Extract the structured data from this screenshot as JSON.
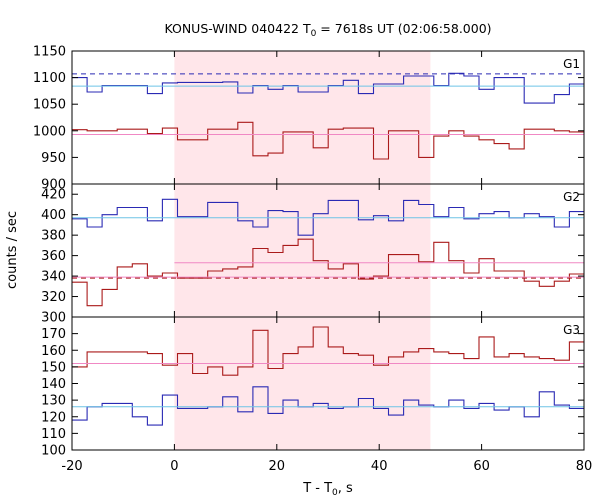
{
  "chart_data": {
    "type": "line",
    "title_parts": [
      "KONUS-WIND 040422 T",
      "0",
      " = 7618s UT (02:06:58.000)"
    ],
    "xlabel_parts": [
      "T - T",
      "0",
      ", s"
    ],
    "ylabel": "counts / sec",
    "xlim": [
      -20,
      80
    ],
    "xticks": [
      -20,
      0,
      20,
      40,
      60,
      80
    ],
    "shaded_interval": [
      0,
      50
    ],
    "colors": {
      "blue_series": "#2a2ab4",
      "red_series": "#aa1a1a",
      "blue_background": "#6ec4e6",
      "red_background": "#f088c4",
      "shade": "#ffe6ea"
    },
    "panels": [
      {
        "label": "G1",
        "ylim": [
          900,
          1150
        ],
        "yticks": [
          900,
          950,
          1000,
          1050,
          1100,
          1150
        ],
        "series": [
          {
            "color": "blue",
            "x_start": -20,
            "bin": 2.944,
            "values": [
              1100,
              1073,
              1085,
              1085,
              1085,
              1070,
              1090,
              1091,
              1091,
              1091,
              1092,
              1071,
              1085,
              1078,
              1085,
              1073,
              1073,
              1085,
              1095,
              1070,
              1088,
              1088,
              1103,
              1103,
              1085,
              1108,
              1103,
              1078,
              1100,
              1100,
              1052,
              1052,
              1068,
              1088,
              1072,
              1100,
              1050,
              1090,
              1098,
              1065,
              1055
            ]
          },
          {
            "color": "red",
            "x_start": -20,
            "bin": 2.944,
            "values": [
              1002,
              1000,
              1000,
              1003,
              1003,
              995,
              1005,
              983,
              983,
              1003,
              1003,
              1016,
              953,
              958,
              998,
              998,
              968,
              1003,
              1005,
              1005,
              947,
              1000,
              1000,
              950,
              990,
              1000,
              990,
              983,
              976,
              966,
              1003,
              1003,
              1000,
              998,
              1000,
              993,
              987,
              987,
              988,
              953,
              966
            ]
          },
          {
            "color": "bluebg",
            "x_start": -20,
            "values": [
              1084,
              1084
            ]
          },
          {
            "color": "redbg",
            "x_start": -20,
            "values": [
              993,
              993
            ]
          },
          {
            "color": "bluedash",
            "x_start": -20,
            "values": [
              1107,
              1107
            ]
          }
        ]
      },
      {
        "label": "G2",
        "ylim": [
          300,
          430
        ],
        "yticks": [
          300,
          320,
          340,
          360,
          380,
          400,
          420
        ],
        "series": [
          {
            "color": "blue",
            "x_start": -20,
            "bin": 2.944,
            "values": [
              396,
              388,
              400,
              407,
              407,
              394,
              415,
              398,
              398,
              412,
              412,
              394,
              388,
              404,
              403,
              380,
              401,
              414,
              414,
              395,
              399,
              394,
              414,
              410,
              398,
              407,
              396,
              401,
              403,
              397,
              401,
              398,
              388,
              403,
              410,
              415,
              396,
              391,
              385,
              395,
              401
            ]
          },
          {
            "color": "red",
            "x_start": -20,
            "bin": 2.944,
            "values": [
              334,
              311,
              327,
              349,
              352,
              340,
              343,
              338,
              338,
              345,
              347,
              349,
              367,
              363,
              370,
              376,
              355,
              347,
              352,
              337,
              340,
              361,
              361,
              354,
              373,
              355,
              343,
              357,
              345,
              345,
              335,
              330,
              335,
              342,
              345,
              353,
              344,
              339,
              336,
              344,
              330
            ]
          },
          {
            "color": "bluebg",
            "x_start": -20,
            "values": [
              397,
              397
            ]
          },
          {
            "color": "redbg",
            "x_start": 0,
            "values": [
              353,
              353
            ]
          },
          {
            "color": "redbg",
            "x_start": -20,
            "values": [
              339,
              339
            ]
          },
          {
            "color": "reddash",
            "x_start": -20,
            "values": [
              338,
              338
            ]
          }
        ]
      },
      {
        "label": "G3",
        "ylim": [
          100,
          180
        ],
        "yticks": [
          100,
          110,
          120,
          130,
          140,
          150,
          160,
          170
        ],
        "series": [
          {
            "color": "blue",
            "x_start": -20,
            "bin": 2.944,
            "values": [
              118,
              126,
              128,
              128,
              120,
              115,
              133,
              125,
              125,
              126,
              132,
              123,
              138,
              122,
              130,
              126,
              128,
              125,
              126,
              131,
              125,
              121,
              130,
              127,
              126,
              130,
              125,
              128,
              124,
              126,
              120,
              135,
              127,
              125,
              127,
              121,
              131,
              125,
              134,
              124,
              130
            ]
          },
          {
            "color": "red",
            "x_start": -20,
            "bin": 2.944,
            "values": [
              150,
              159,
              159,
              159,
              159,
              158,
              151,
              158,
              146,
              150,
              145,
              150,
              172,
              149,
              158,
              162,
              174,
              162,
              158,
              157,
              151,
              156,
              159,
              161,
              159,
              158,
              155,
              168,
              156,
              158,
              156,
              155,
              154,
              165,
              150,
              155,
              157,
              150,
              143,
              140,
              152
            ]
          },
          {
            "color": "bluebg",
            "x_start": -20,
            "values": [
              126,
              126
            ]
          },
          {
            "color": "redbg",
            "x_start": -20,
            "values": [
              152,
              152
            ]
          }
        ]
      }
    ]
  }
}
